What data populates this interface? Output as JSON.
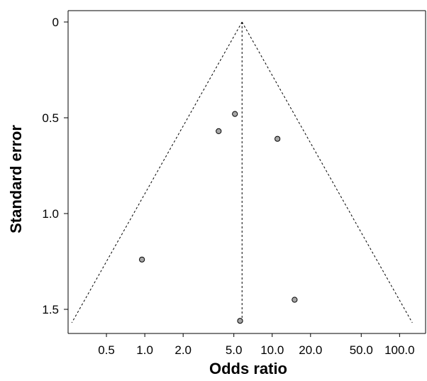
{
  "chart_data": {
    "type": "scatter",
    "xlabel": "Odds ratio",
    "ylabel": "Standard error",
    "x_scale": "log",
    "y_reversed": true,
    "xlim": [
      0.25,
      160
    ],
    "ylim": [
      0,
      1.62
    ],
    "xticks": [
      0.5,
      1.0,
      2.0,
      5.0,
      10.0,
      20.0,
      50.0,
      100.0
    ],
    "xtick_labels": [
      "0.5",
      "1.0",
      "2.0",
      "5.0",
      "10.0",
      "20.0",
      "50.0",
      "100.0"
    ],
    "yticks": [
      0,
      0.5,
      1.0,
      1.5
    ],
    "ytick_labels": [
      "0",
      "0.5",
      "1.0",
      "1.5"
    ],
    "pooled_estimate": 5.8,
    "funnel_se_max": 1.57,
    "points": [
      {
        "x": 5.1,
        "y": 0.48
      },
      {
        "x": 3.8,
        "y": 0.57
      },
      {
        "x": 11.0,
        "y": 0.61
      },
      {
        "x": 0.95,
        "y": 1.24
      },
      {
        "x": 15.0,
        "y": 1.45
      },
      {
        "x": 5.6,
        "y": 1.56
      }
    ],
    "grid": false,
    "colors": {
      "point_fill": "#a6a6a6",
      "line": "#000000"
    }
  }
}
